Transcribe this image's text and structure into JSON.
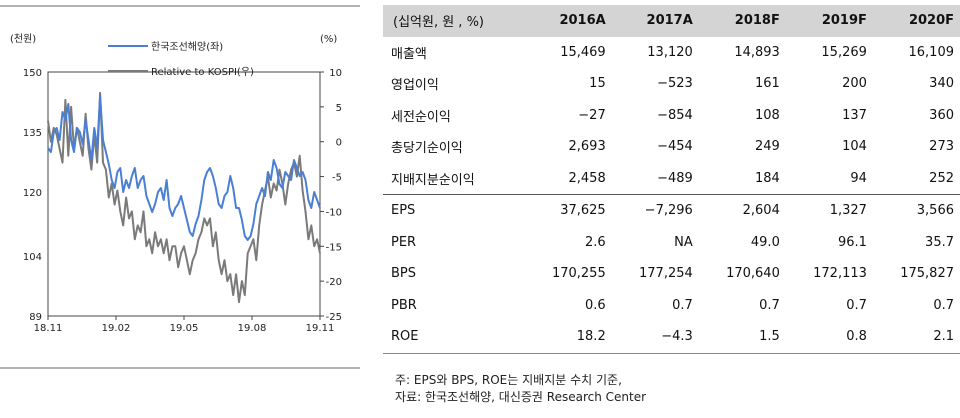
{
  "chart_data": {
    "type": "line",
    "left_axis_unit": "(천원)",
    "right_axis_unit": "(%)",
    "left_ylim": [
      89,
      150
    ],
    "left_ticks": [
      150,
      135,
      120,
      104,
      89
    ],
    "right_ylim": [
      -25,
      10
    ],
    "right_ticks": [
      10,
      5,
      0,
      -5,
      -10,
      -15,
      -20,
      -25
    ],
    "x_ticks": [
      "18.11",
      "19.02",
      "19.05",
      "19.08",
      "19.11"
    ],
    "series": [
      {
        "name": "한국조선해양(좌)",
        "axis": "left",
        "color": "#4a7fd4",
        "values": [
          131,
          130,
          135,
          136,
          133,
          140,
          138,
          142,
          133,
          130,
          136,
          135,
          132,
          138,
          133,
          128,
          136,
          131,
          144,
          133,
          130,
          127,
          123,
          121,
          125,
          126,
          120,
          123,
          121,
          124,
          126,
          121,
          123,
          124,
          119,
          117,
          115,
          117,
          120,
          121,
          118,
          123,
          116,
          114,
          116,
          117,
          119,
          116,
          113,
          110,
          109,
          112,
          114,
          118,
          123,
          125,
          126,
          124,
          121,
          117,
          116,
          119,
          120,
          124,
          121,
          116,
          116,
          113,
          109,
          108,
          109,
          112,
          117,
          119,
          121,
          119,
          125,
          123,
          128,
          126,
          122,
          121,
          125,
          124,
          123,
          128,
          126,
          124,
          125,
          123,
          118,
          116,
          120,
          118,
          116
        ]
      },
      {
        "name": "Relative to KOSPI(우)",
        "axis": "right",
        "color": "#7a7a7a",
        "values": [
          3,
          0,
          2,
          1,
          -1,
          -3,
          6,
          -2,
          5,
          -1,
          2,
          0,
          -2,
          4,
          -1,
          -4,
          1,
          -3,
          7,
          -3,
          -4,
          -8,
          -6,
          -9,
          -7,
          -10,
          -12,
          -8,
          -11,
          -10,
          -14,
          -12,
          -13,
          -10,
          -15,
          -14,
          -16,
          -13,
          -15,
          -14,
          -16,
          -14,
          -17,
          -15,
          -15,
          -18,
          -16,
          -15,
          -17,
          -19,
          -17,
          -16,
          -14,
          -13,
          -11,
          -12,
          -11,
          -15,
          -13,
          -17,
          -19,
          -17,
          -20,
          -19,
          -22,
          -19,
          -23,
          -20,
          -22,
          -16,
          -15,
          -14,
          -17,
          -12,
          -9,
          -7,
          -5,
          -8,
          -6,
          -7,
          -4,
          -6,
          -9,
          -6,
          -4,
          -3,
          -5,
          -2,
          -7,
          -10,
          -14,
          -12,
          -15,
          -14,
          -16
        ]
      }
    ]
  },
  "table": {
    "header": [
      "(십억원, 원 , %)",
      "2016A",
      "2017A",
      "2018F",
      "2019F",
      "2020F"
    ],
    "rows": [
      [
        "매출액",
        "15,469",
        "13,120",
        "14,893",
        "15,269",
        "16,109"
      ],
      [
        "영업이익",
        "15",
        "−523",
        "161",
        "200",
        "340"
      ],
      [
        "세전순이익",
        "−27",
        "−854",
        "108",
        "137",
        "360"
      ],
      [
        "총당기순이익",
        "2,693",
        "−454",
        "249",
        "104",
        "273"
      ],
      [
        "지배지분순이익",
        "2,458",
        "−489",
        "184",
        "94",
        "252"
      ],
      [
        "EPS",
        "37,625",
        "−7,296",
        "2,604",
        "1,327",
        "3,566"
      ],
      [
        "PER",
        "2.6",
        "NA",
        "49.0",
        "96.1",
        "35.7"
      ],
      [
        "BPS",
        "170,255",
        "177,254",
        "170,640",
        "172,113",
        "175,827"
      ],
      [
        "PBR",
        "0.6",
        "0.7",
        "0.7",
        "0.7",
        "0.7"
      ],
      [
        "ROE",
        "18.2",
        "−4.3",
        "1.5",
        "0.8",
        "2.1"
      ]
    ]
  },
  "notes": {
    "line1": "주: EPS와 BPS, ROE는 지배지분 수치 기준,",
    "line2": "자료: 한국조선해양, 대신증권 Research Center"
  }
}
